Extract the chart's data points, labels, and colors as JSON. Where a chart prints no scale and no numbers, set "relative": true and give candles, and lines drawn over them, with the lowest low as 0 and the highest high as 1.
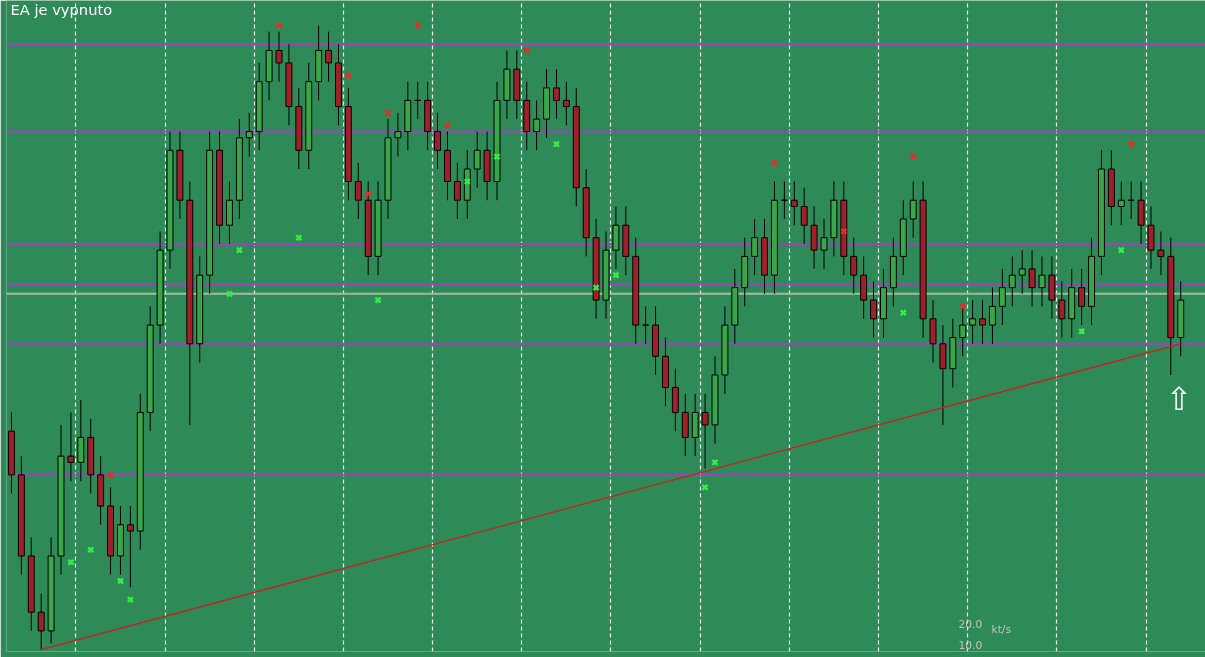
{
  "chart_data": {
    "type": "candlestick",
    "relative": true,
    "tick_labels": false,
    "grid": "x",
    "categories": [
      null,
      null,
      null,
      null,
      null,
      null,
      null,
      null,
      null,
      null,
      null,
      null,
      null,
      null,
      null,
      null,
      null,
      null,
      null,
      null,
      null,
      null,
      null,
      null,
      null,
      null,
      null,
      null,
      null,
      null,
      null,
      null,
      null,
      null,
      null,
      null,
      null,
      null,
      null,
      null,
      null,
      null,
      null,
      null,
      null,
      null,
      null,
      null,
      null,
      null,
      null,
      null,
      null,
      null,
      null,
      null,
      null,
      null,
      null,
      null,
      null,
      null,
      null,
      null,
      null,
      null,
      null,
      null,
      null,
      null,
      null,
      null,
      null,
      null,
      null,
      null,
      null,
      null,
      null,
      null,
      null,
      null,
      null,
      null,
      null,
      null,
      null,
      null,
      null,
      null,
      null,
      null,
      null,
      null,
      null,
      null,
      null,
      null,
      null,
      null,
      null,
      null,
      null,
      null,
      null,
      null,
      null,
      null,
      null,
      null,
      null,
      null,
      null,
      null,
      null,
      null,
      null,
      null,
      null
    ],
    "ohlc": [
      [
        0.35,
        0.38,
        0.25,
        0.28
      ],
      [
        0.28,
        0.31,
        0.12,
        0.15
      ],
      [
        0.15,
        0.18,
        0.03,
        0.06
      ],
      [
        0.06,
        0.09,
        0.0,
        0.03
      ],
      [
        0.03,
        0.18,
        0.01,
        0.15
      ],
      [
        0.15,
        0.36,
        0.12,
        0.31
      ],
      [
        0.31,
        0.38,
        0.27,
        0.3
      ],
      [
        0.3,
        0.4,
        0.27,
        0.34
      ],
      [
        0.34,
        0.37,
        0.25,
        0.28
      ],
      [
        0.28,
        0.31,
        0.2,
        0.23
      ],
      [
        0.23,
        0.26,
        0.12,
        0.15
      ],
      [
        0.15,
        0.23,
        0.12,
        0.2
      ],
      [
        0.2,
        0.23,
        0.1,
        0.19
      ],
      [
        0.19,
        0.41,
        0.16,
        0.38
      ],
      [
        0.38,
        0.55,
        0.35,
        0.52
      ],
      [
        0.52,
        0.67,
        0.49,
        0.64
      ],
      [
        0.64,
        0.83,
        0.61,
        0.8
      ],
      [
        0.8,
        0.83,
        0.69,
        0.72
      ],
      [
        0.72,
        0.75,
        0.36,
        0.49
      ],
      [
        0.49,
        0.63,
        0.46,
        0.6
      ],
      [
        0.6,
        0.83,
        0.57,
        0.8
      ],
      [
        0.8,
        0.83,
        0.65,
        0.68
      ],
      [
        0.68,
        0.75,
        0.65,
        0.72
      ],
      [
        0.72,
        0.85,
        0.69,
        0.82
      ],
      [
        0.82,
        0.86,
        0.79,
        0.83
      ],
      [
        0.83,
        0.94,
        0.8,
        0.91
      ],
      [
        0.91,
        0.99,
        0.88,
        0.96
      ],
      [
        0.96,
        0.99,
        0.91,
        0.94
      ],
      [
        0.94,
        0.97,
        0.84,
        0.87
      ],
      [
        0.87,
        0.9,
        0.77,
        0.8
      ],
      [
        0.8,
        0.94,
        0.77,
        0.91
      ],
      [
        0.91,
        1.0,
        0.88,
        0.96
      ],
      [
        0.96,
        0.99,
        0.91,
        0.94
      ],
      [
        0.94,
        0.97,
        0.84,
        0.87
      ],
      [
        0.87,
        0.9,
        0.72,
        0.75
      ],
      [
        0.75,
        0.78,
        0.69,
        0.72
      ],
      [
        0.72,
        0.75,
        0.6,
        0.63
      ],
      [
        0.63,
        0.75,
        0.6,
        0.72
      ],
      [
        0.72,
        0.85,
        0.69,
        0.82
      ],
      [
        0.82,
        0.86,
        0.79,
        0.83
      ],
      [
        0.83,
        0.91,
        0.8,
        0.88
      ],
      [
        0.88,
        0.91,
        0.85,
        0.88
      ],
      [
        0.88,
        0.91,
        0.8,
        0.83
      ],
      [
        0.83,
        0.86,
        0.77,
        0.8
      ],
      [
        0.8,
        0.83,
        0.72,
        0.75
      ],
      [
        0.75,
        0.78,
        0.69,
        0.72
      ],
      [
        0.72,
        0.8,
        0.69,
        0.77
      ],
      [
        0.77,
        0.83,
        0.74,
        0.8
      ],
      [
        0.8,
        0.83,
        0.72,
        0.75
      ],
      [
        0.75,
        0.91,
        0.72,
        0.88
      ],
      [
        0.88,
        0.96,
        0.85,
        0.93
      ],
      [
        0.93,
        0.96,
        0.85,
        0.88
      ],
      [
        0.88,
        0.91,
        0.8,
        0.83
      ],
      [
        0.83,
        0.88,
        0.8,
        0.85
      ],
      [
        0.85,
        0.93,
        0.82,
        0.9
      ],
      [
        0.9,
        0.93,
        0.85,
        0.88
      ],
      [
        0.88,
        0.91,
        0.84,
        0.87
      ],
      [
        0.87,
        0.9,
        0.71,
        0.74
      ],
      [
        0.74,
        0.77,
        0.63,
        0.66
      ],
      [
        0.66,
        0.69,
        0.53,
        0.56
      ],
      [
        0.56,
        0.67,
        0.53,
        0.64
      ],
      [
        0.64,
        0.71,
        0.61,
        0.68
      ],
      [
        0.68,
        0.71,
        0.6,
        0.63
      ],
      [
        0.63,
        0.66,
        0.49,
        0.52
      ],
      [
        0.52,
        0.55,
        0.49,
        0.52
      ],
      [
        0.52,
        0.55,
        0.44,
        0.47
      ],
      [
        0.47,
        0.5,
        0.39,
        0.42
      ],
      [
        0.42,
        0.45,
        0.35,
        0.38
      ],
      [
        0.38,
        0.41,
        0.31,
        0.34
      ],
      [
        0.34,
        0.41,
        0.31,
        0.38
      ],
      [
        0.38,
        0.41,
        0.29,
        0.36
      ],
      [
        0.36,
        0.47,
        0.33,
        0.44
      ],
      [
        0.44,
        0.55,
        0.41,
        0.52
      ],
      [
        0.52,
        0.61,
        0.49,
        0.58
      ],
      [
        0.58,
        0.66,
        0.55,
        0.63
      ],
      [
        0.63,
        0.69,
        0.6,
        0.66
      ],
      [
        0.66,
        0.69,
        0.57,
        0.6
      ],
      [
        0.6,
        0.75,
        0.57,
        0.72
      ],
      [
        0.72,
        0.75,
        0.69,
        0.72
      ],
      [
        0.72,
        0.75,
        0.68,
        0.71
      ],
      [
        0.71,
        0.74,
        0.65,
        0.68
      ],
      [
        0.68,
        0.71,
        0.61,
        0.64
      ],
      [
        0.64,
        0.69,
        0.61,
        0.66
      ],
      [
        0.66,
        0.75,
        0.63,
        0.72
      ],
      [
        0.72,
        0.75,
        0.6,
        0.63
      ],
      [
        0.63,
        0.66,
        0.57,
        0.6
      ],
      [
        0.6,
        0.63,
        0.53,
        0.56
      ],
      [
        0.56,
        0.59,
        0.5,
        0.53
      ],
      [
        0.53,
        0.61,
        0.5,
        0.58
      ],
      [
        0.58,
        0.66,
        0.55,
        0.63
      ],
      [
        0.63,
        0.72,
        0.6,
        0.69
      ],
      [
        0.69,
        0.75,
        0.66,
        0.72
      ],
      [
        0.72,
        0.75,
        0.5,
        0.53
      ],
      [
        0.53,
        0.56,
        0.46,
        0.49
      ],
      [
        0.49,
        0.52,
        0.36,
        0.45
      ],
      [
        0.45,
        0.53,
        0.42,
        0.5
      ],
      [
        0.5,
        0.55,
        0.47,
        0.52
      ],
      [
        0.52,
        0.56,
        0.49,
        0.53
      ],
      [
        0.53,
        0.56,
        0.49,
        0.52
      ],
      [
        0.52,
        0.58,
        0.49,
        0.55
      ],
      [
        0.55,
        0.61,
        0.52,
        0.58
      ],
      [
        0.58,
        0.63,
        0.55,
        0.6
      ],
      [
        0.6,
        0.64,
        0.57,
        0.61
      ],
      [
        0.61,
        0.64,
        0.55,
        0.58
      ],
      [
        0.58,
        0.63,
        0.55,
        0.6
      ],
      [
        0.6,
        0.63,
        0.53,
        0.56
      ],
      [
        0.56,
        0.59,
        0.5,
        0.53
      ],
      [
        0.53,
        0.61,
        0.5,
        0.58
      ],
      [
        0.58,
        0.61,
        0.52,
        0.55
      ],
      [
        0.55,
        0.66,
        0.52,
        0.63
      ],
      [
        0.63,
        0.8,
        0.6,
        0.77
      ],
      [
        0.77,
        0.8,
        0.68,
        0.71
      ],
      [
        0.71,
        0.75,
        0.68,
        0.72
      ],
      [
        0.72,
        0.75,
        0.69,
        0.72
      ],
      [
        0.72,
        0.75,
        0.65,
        0.68
      ],
      [
        0.68,
        0.71,
        0.61,
        0.64
      ],
      [
        0.64,
        0.67,
        0.6,
        0.63
      ],
      [
        0.63,
        0.66,
        0.44,
        0.5
      ],
      [
        0.5,
        0.59,
        0.47,
        0.56
      ]
    ],
    "series": [
      {
        "type": "scatter",
        "marker": "cross",
        "color": "#e0302a",
        "values": [
          null,
          null,
          null,
          null,
          null,
          null,
          null,
          null,
          null,
          null,
          0.28,
          null,
          null,
          null,
          null,
          null,
          null,
          null,
          null,
          null,
          null,
          null,
          null,
          null,
          null,
          null,
          null,
          1.0,
          null,
          null,
          null,
          null,
          null,
          null,
          0.92,
          null,
          0.73,
          null,
          0.86,
          null,
          null,
          1.0,
          null,
          null,
          0.84,
          null,
          null,
          null,
          null,
          null,
          null,
          null,
          0.96,
          null,
          null,
          null,
          null,
          null,
          null,
          null,
          null,
          null,
          null,
          null,
          null,
          null,
          null,
          null,
          null,
          null,
          null,
          null,
          null,
          null,
          null,
          null,
          null,
          0.78,
          null,
          null,
          null,
          null,
          null,
          null,
          0.67,
          null,
          null,
          null,
          null,
          null,
          null,
          0.79,
          null,
          null,
          null,
          null,
          0.55,
          null,
          null,
          null,
          null,
          null,
          null,
          null,
          null,
          null,
          null,
          null,
          null,
          null,
          null,
          null,
          null,
          0.81,
          null,
          null,
          null,
          null,
          null
        ]
      },
      {
        "type": "scatter",
        "marker": "cross",
        "color": "#33ee44",
        "values": [
          null,
          null,
          null,
          null,
          null,
          null,
          0.14,
          null,
          0.16,
          null,
          null,
          0.11,
          0.08,
          null,
          null,
          null,
          null,
          null,
          null,
          null,
          null,
          null,
          0.57,
          0.64,
          null,
          null,
          null,
          null,
          null,
          0.66,
          null,
          null,
          null,
          null,
          null,
          null,
          null,
          0.56,
          null,
          null,
          null,
          null,
          null,
          null,
          null,
          null,
          0.75,
          null,
          null,
          0.79,
          null,
          null,
          null,
          null,
          null,
          0.81,
          null,
          null,
          null,
          0.58,
          null,
          0.6,
          null,
          null,
          null,
          null,
          null,
          null,
          null,
          null,
          0.26,
          0.3,
          null,
          null,
          null,
          null,
          null,
          null,
          null,
          null,
          null,
          null,
          null,
          null,
          null,
          null,
          null,
          null,
          null,
          null,
          0.54,
          null,
          null,
          null,
          null,
          null,
          null,
          null,
          null,
          null,
          null,
          null,
          null,
          null,
          null,
          null,
          null,
          null,
          0.51,
          null,
          null,
          null,
          0.64,
          null,
          null,
          null,
          null,
          null,
          null
        ]
      },
      {
        "type": "line",
        "color": "#cc2020",
        "values": [
          null,
          null,
          null,
          0.0,
          null,
          null,
          null,
          null,
          null,
          null,
          null,
          null,
          null,
          null,
          null,
          null,
          null,
          null,
          null,
          null,
          null,
          null,
          null,
          null,
          null,
          null,
          null,
          null,
          null,
          null,
          null,
          null,
          null,
          null,
          null,
          null,
          null,
          null,
          null,
          null,
          null,
          null,
          null,
          null,
          null,
          null,
          null,
          null,
          null,
          null,
          null,
          null,
          null,
          null,
          null,
          null,
          null,
          null,
          null,
          null,
          null,
          null,
          null,
          null,
          null,
          null,
          null,
          null,
          null,
          null,
          null,
          null,
          null,
          null,
          null,
          null,
          null,
          null,
          null,
          null,
          null,
          null,
          null,
          null,
          null,
          null,
          null,
          null,
          null,
          null,
          null,
          null,
          null,
          null,
          null,
          null,
          null,
          null,
          null,
          null,
          null,
          null,
          null,
          null,
          null,
          null,
          null,
          null,
          null,
          null,
          null,
          null,
          null,
          null,
          null,
          null,
          null,
          null,
          0.49
        ]
      }
    ],
    "ref_lines": [
      {
        "axis": "y",
        "value": 0.97,
        "color": "#a040c0"
      },
      {
        "axis": "y",
        "value": 0.83,
        "color": "#a040c0"
      },
      {
        "axis": "y",
        "value": 0.65,
        "color": "#a040c0"
      },
      {
        "axis": "y",
        "value": 0.585,
        "color": "#a040c0"
      },
      {
        "axis": "y",
        "value": 0.57,
        "color": "#a8b8a8"
      },
      {
        "axis": "y",
        "value": 0.49,
        "color": "#a040c0"
      },
      {
        "axis": "y",
        "value": 0.28,
        "color": "#a040c0"
      }
    ],
    "annotations": [
      "EA je vypnuto",
      "20.0",
      "10.0",
      "kt/s",
      "⇧"
    ]
  }
}
